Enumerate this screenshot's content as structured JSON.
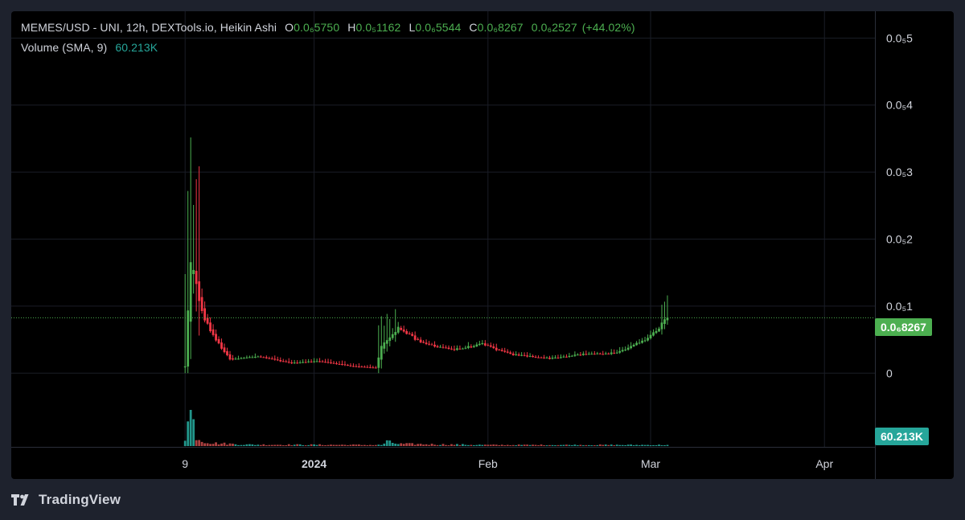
{
  "legend": {
    "symbol": "MEMES/USD - UNI, 12h, DEXTools.io, Heikin Ashi",
    "open_label": "O",
    "open_value": "0.0₆5750",
    "high_label": "H",
    "high_value": "0.0₅1162",
    "low_label": "L",
    "low_value": "0.0₆5544",
    "close_label": "C",
    "close_value": "0.0₆8267",
    "change_value": "0.0₆2527",
    "change_pct": "(+44.02%)",
    "volume_label": "Volume (SMA, 9)",
    "volume_value": "60.213K"
  },
  "badges": {
    "last_price": "0.0₆8267",
    "volume": "60.213K"
  },
  "branding": {
    "logo_text": "TradingView"
  },
  "colors": {
    "up": "#4caf50",
    "down": "#f23645",
    "volume_up": "#26a69a",
    "volume_down": "#c04848",
    "background": "#000000",
    "grid": "#1a1d26",
    "text": "#d1d4dc"
  },
  "chart_data": {
    "type": "candlestick",
    "style": "Heikin Ashi",
    "interval": "12h",
    "y_tick_labels": [
      "0.0₅5",
      "0.0₅4",
      "0.0₅3",
      "0.0₅2",
      "0.0₅1",
      "0"
    ],
    "y_ticks": [
      5e-06,
      4e-06,
      3e-06,
      2e-06,
      1e-06,
      0
    ],
    "ylim": [
      -1.1e-06,
      5.4e-06
    ],
    "x_tick_labels": [
      "9",
      "2024",
      "Feb",
      "Mar",
      "Apr"
    ],
    "x_ticks": [
      "2023-12-09",
      "2024-01-01",
      "2024-02-01",
      "2024-03-01",
      "2024-04-01"
    ],
    "xlim": [
      "2023-11-08",
      "2024-04-10"
    ],
    "last_close": 8.267e-07,
    "grid": true,
    "legend_position": "top-left",
    "price_points": [
      {
        "date": "2023-12-09",
        "value": 1e-07
      },
      {
        "date": "2023-12-10",
        "value": 1.7e-06
      },
      {
        "date": "2023-12-11",
        "value": 1.3e-06
      },
      {
        "date": "2023-12-12",
        "value": 9e-07
      },
      {
        "date": "2023-12-14",
        "value": 5.5e-07
      },
      {
        "date": "2023-12-17",
        "value": 2e-07
      },
      {
        "date": "2023-12-22",
        "value": 2.5e-07
      },
      {
        "date": "2023-12-28",
        "value": 1.5e-07
      },
      {
        "date": "2024-01-02",
        "value": 1.8e-07
      },
      {
        "date": "2024-01-08",
        "value": 1e-07
      },
      {
        "date": "2024-01-12",
        "value": 8e-08
      },
      {
        "date": "2024-01-13",
        "value": 4e-07
      },
      {
        "date": "2024-01-16",
        "value": 6.8e-07
      },
      {
        "date": "2024-01-20",
        "value": 4.5e-07
      },
      {
        "date": "2024-01-26",
        "value": 3.5e-07
      },
      {
        "date": "2024-01-31",
        "value": 4.3e-07
      },
      {
        "date": "2024-02-05",
        "value": 2.8e-07
      },
      {
        "date": "2024-02-12",
        "value": 2.2e-07
      },
      {
        "date": "2024-02-18",
        "value": 2.8e-07
      },
      {
        "date": "2024-02-24",
        "value": 3e-07
      },
      {
        "date": "2024-03-01",
        "value": 5.5e-07
      },
      {
        "date": "2024-03-04",
        "value": 8.267e-07
      }
    ],
    "volume_points": [
      {
        "date": "2023-12-09",
        "value": 0.25
      },
      {
        "date": "2023-12-10",
        "value": 1.0
      },
      {
        "date": "2023-12-11",
        "value": 0.28
      },
      {
        "date": "2023-12-12",
        "value": 0.15
      },
      {
        "date": "2023-12-14",
        "value": 0.08
      },
      {
        "date": "2023-12-20",
        "value": 0.04
      },
      {
        "date": "2024-01-13",
        "value": 0.03
      },
      {
        "date": "2024-01-14",
        "value": 0.12
      },
      {
        "date": "2024-01-16",
        "value": 0.06
      },
      {
        "date": "2024-02-01",
        "value": 0.03
      },
      {
        "date": "2024-03-04",
        "value": 0.03
      }
    ]
  }
}
